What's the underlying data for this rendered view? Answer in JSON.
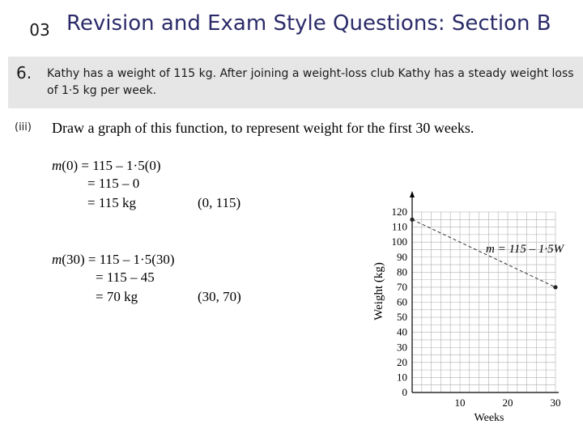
{
  "header": {
    "chapter_number": "03",
    "title": "Revision and Exam Style Questions: Section B"
  },
  "question": {
    "number": "6.",
    "text": "Kathy has a weight of 115 kg. After joining a weight-loss club Kathy has a steady weight loss of 1·5 kg per week."
  },
  "part": {
    "label": "(iii)",
    "text": "Draw a graph of this function, to represent weight for the first 30 weeks."
  },
  "working": {
    "block1": {
      "line1_var": "m",
      "line1_rest": "(0) = 115 – 1·5(0)",
      "line2": "= 115 – 0",
      "line3": "= 115 kg",
      "point": "(0, 115)"
    },
    "block2": {
      "line1_var": "m",
      "line1_rest": "(30) = 115 – 1·5(30)",
      "line2": "= 115 – 45",
      "line3": "= 70 kg",
      "point": "(30, 70)"
    }
  },
  "chart_data": {
    "type": "line",
    "xlabel": "Weeks",
    "ylabel": "Weight (kg)",
    "xlim": [
      0,
      30
    ],
    "ylim": [
      0,
      120
    ],
    "x_ticks": [
      10,
      20,
      30
    ],
    "y_ticks": [
      0,
      10,
      20,
      30,
      40,
      50,
      60,
      70,
      80,
      90,
      100,
      110,
      120
    ],
    "grid": true,
    "series": [
      {
        "points": [
          [
            0,
            115
          ],
          [
            30,
            70
          ]
        ],
        "style": "dashed",
        "color": "#333333"
      }
    ],
    "annotation": "m = 115 – 1·5W"
  }
}
